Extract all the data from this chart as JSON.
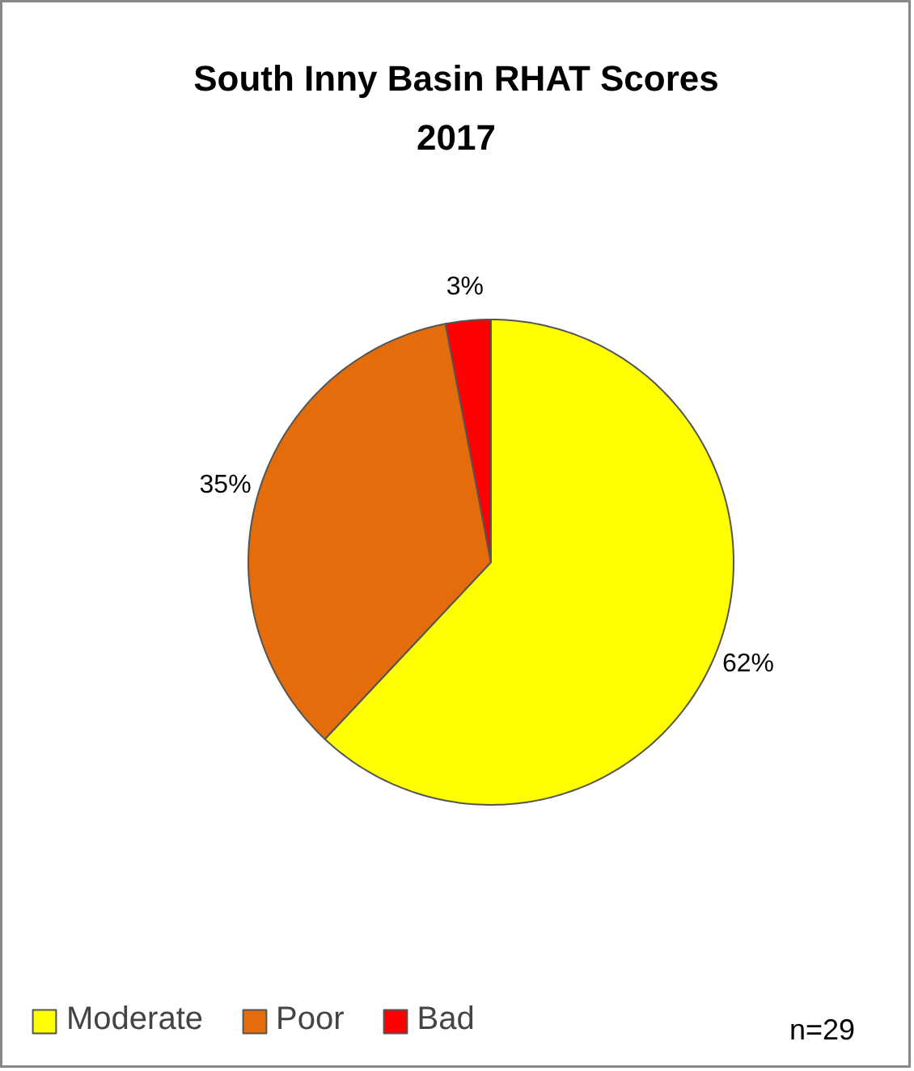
{
  "chart_data": {
    "type": "pie",
    "title": "South Inny Basin RHAT Scores\n2017",
    "categories": [
      "Moderate",
      "Poor",
      "Bad"
    ],
    "values": [
      62,
      35,
      3
    ],
    "colors": [
      "#ffff00",
      "#e46c0a",
      "#ff0000"
    ],
    "legend": "bottom",
    "value_labels": [
      "62%",
      "35%",
      "3%"
    ],
    "annotations": [
      "n=29"
    ]
  }
}
